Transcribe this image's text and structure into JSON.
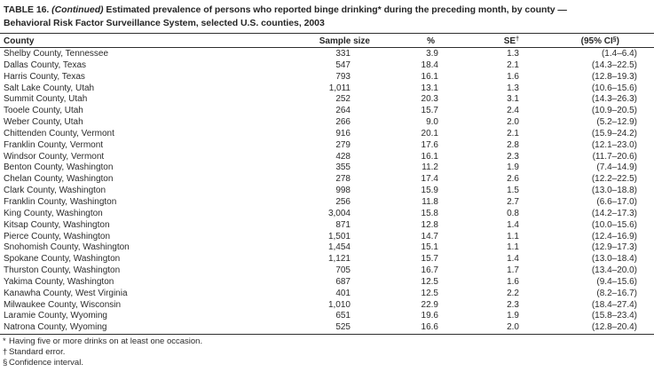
{
  "title": {
    "prefix": "TABLE 16. ",
    "continued": "(Continued)",
    "line1_rest": " Estimated prevalence of persons who reported binge drinking* during the preceding month, by county —",
    "line2": "Behavioral Risk Factor Surveillance System, selected U.S. counties, 2003"
  },
  "table": {
    "columns": {
      "county": "County",
      "sample_size": "Sample size",
      "percent": "%",
      "se": "SE",
      "se_sup": "†",
      "ci": "(95% CI",
      "ci_sup": "§",
      "ci_close": ")"
    },
    "rows": [
      {
        "county": "Shelby County, Tennessee",
        "sample_size": "331",
        "percent": "3.9",
        "se": "1.3",
        "ci": "(1.4–6.4)"
      },
      {
        "county": "Dallas County, Texas",
        "sample_size": "547",
        "percent": "18.4",
        "se": "2.1",
        "ci": "(14.3–22.5)"
      },
      {
        "county": "Harris County, Texas",
        "sample_size": "793",
        "percent": "16.1",
        "se": "1.6",
        "ci": "(12.8–19.3)"
      },
      {
        "county": "Salt Lake County, Utah",
        "sample_size": "1,011",
        "percent": "13.1",
        "se": "1.3",
        "ci": "(10.6–15.6)"
      },
      {
        "county": "Summit County, Utah",
        "sample_size": "252",
        "percent": "20.3",
        "se": "3.1",
        "ci": "(14.3–26.3)"
      },
      {
        "county": "Tooele County, Utah",
        "sample_size": "264",
        "percent": "15.7",
        "se": "2.4",
        "ci": "(10.9–20.5)"
      },
      {
        "county": "Weber County, Utah",
        "sample_size": "266",
        "percent": "9.0",
        "se": "2.0",
        "ci": "(5.2–12.9)"
      },
      {
        "county": "Chittenden County, Vermont",
        "sample_size": "916",
        "percent": "20.1",
        "se": "2.1",
        "ci": "(15.9–24.2)"
      },
      {
        "county": "Franklin County, Vermont",
        "sample_size": "279",
        "percent": "17.6",
        "se": "2.8",
        "ci": "(12.1–23.0)"
      },
      {
        "county": "Windsor County, Vermont",
        "sample_size": "428",
        "percent": "16.1",
        "se": "2.3",
        "ci": "(11.7–20.6)"
      },
      {
        "county": "Benton County, Washington",
        "sample_size": "355",
        "percent": "11.2",
        "se": "1.9",
        "ci": "(7.4–14.9)"
      },
      {
        "county": "Chelan County, Washington",
        "sample_size": "278",
        "percent": "17.4",
        "se": "2.6",
        "ci": "(12.2–22.5)"
      },
      {
        "county": "Clark County, Washington",
        "sample_size": "998",
        "percent": "15.9",
        "se": "1.5",
        "ci": "(13.0–18.8)"
      },
      {
        "county": "Franklin County, Washington",
        "sample_size": "256",
        "percent": "11.8",
        "se": "2.7",
        "ci": "(6.6–17.0)"
      },
      {
        "county": "King County, Washington",
        "sample_size": "3,004",
        "percent": "15.8",
        "se": "0.8",
        "ci": "(14.2–17.3)"
      },
      {
        "county": "Kitsap County, Washington",
        "sample_size": "871",
        "percent": "12.8",
        "se": "1.4",
        "ci": "(10.0–15.6)"
      },
      {
        "county": "Pierce County, Washington",
        "sample_size": "1,501",
        "percent": "14.7",
        "se": "1.1",
        "ci": "(12.4–16.9)"
      },
      {
        "county": "Snohomish County, Washington",
        "sample_size": "1,454",
        "percent": "15.1",
        "se": "1.1",
        "ci": "(12.9–17.3)"
      },
      {
        "county": "Spokane County, Washington",
        "sample_size": "1,121",
        "percent": "15.7",
        "se": "1.4",
        "ci": "(13.0–18.4)"
      },
      {
        "county": "Thurston County, Washington",
        "sample_size": "705",
        "percent": "16.7",
        "se": "1.7",
        "ci": "(13.4–20.0)"
      },
      {
        "county": "Yakima County, Washington",
        "sample_size": "687",
        "percent": "12.5",
        "se": "1.6",
        "ci": "(9.4–15.6)"
      },
      {
        "county": "Kanawha County, West Virginia",
        "sample_size": "401",
        "percent": "12.5",
        "se": "2.2",
        "ci": "(8.2–16.7)"
      },
      {
        "county": "Milwaukee County, Wisconsin",
        "sample_size": "1,010",
        "percent": "22.9",
        "se": "2.3",
        "ci": "(18.4–27.4)"
      },
      {
        "county": "Laramie County, Wyoming",
        "sample_size": "651",
        "percent": "19.6",
        "se": "1.9",
        "ci": "(15.8–23.4)"
      },
      {
        "county": "Natrona County, Wyoming",
        "sample_size": "525",
        "percent": "16.6",
        "se": "2.0",
        "ci": "(12.8–20.4)"
      }
    ]
  },
  "footnotes": [
    {
      "symbol": "*",
      "text": "Having five or more drinks on at least one occasion."
    },
    {
      "symbol": "†",
      "text": "Standard error."
    },
    {
      "symbol": "§",
      "text": "Confidence interval."
    }
  ]
}
